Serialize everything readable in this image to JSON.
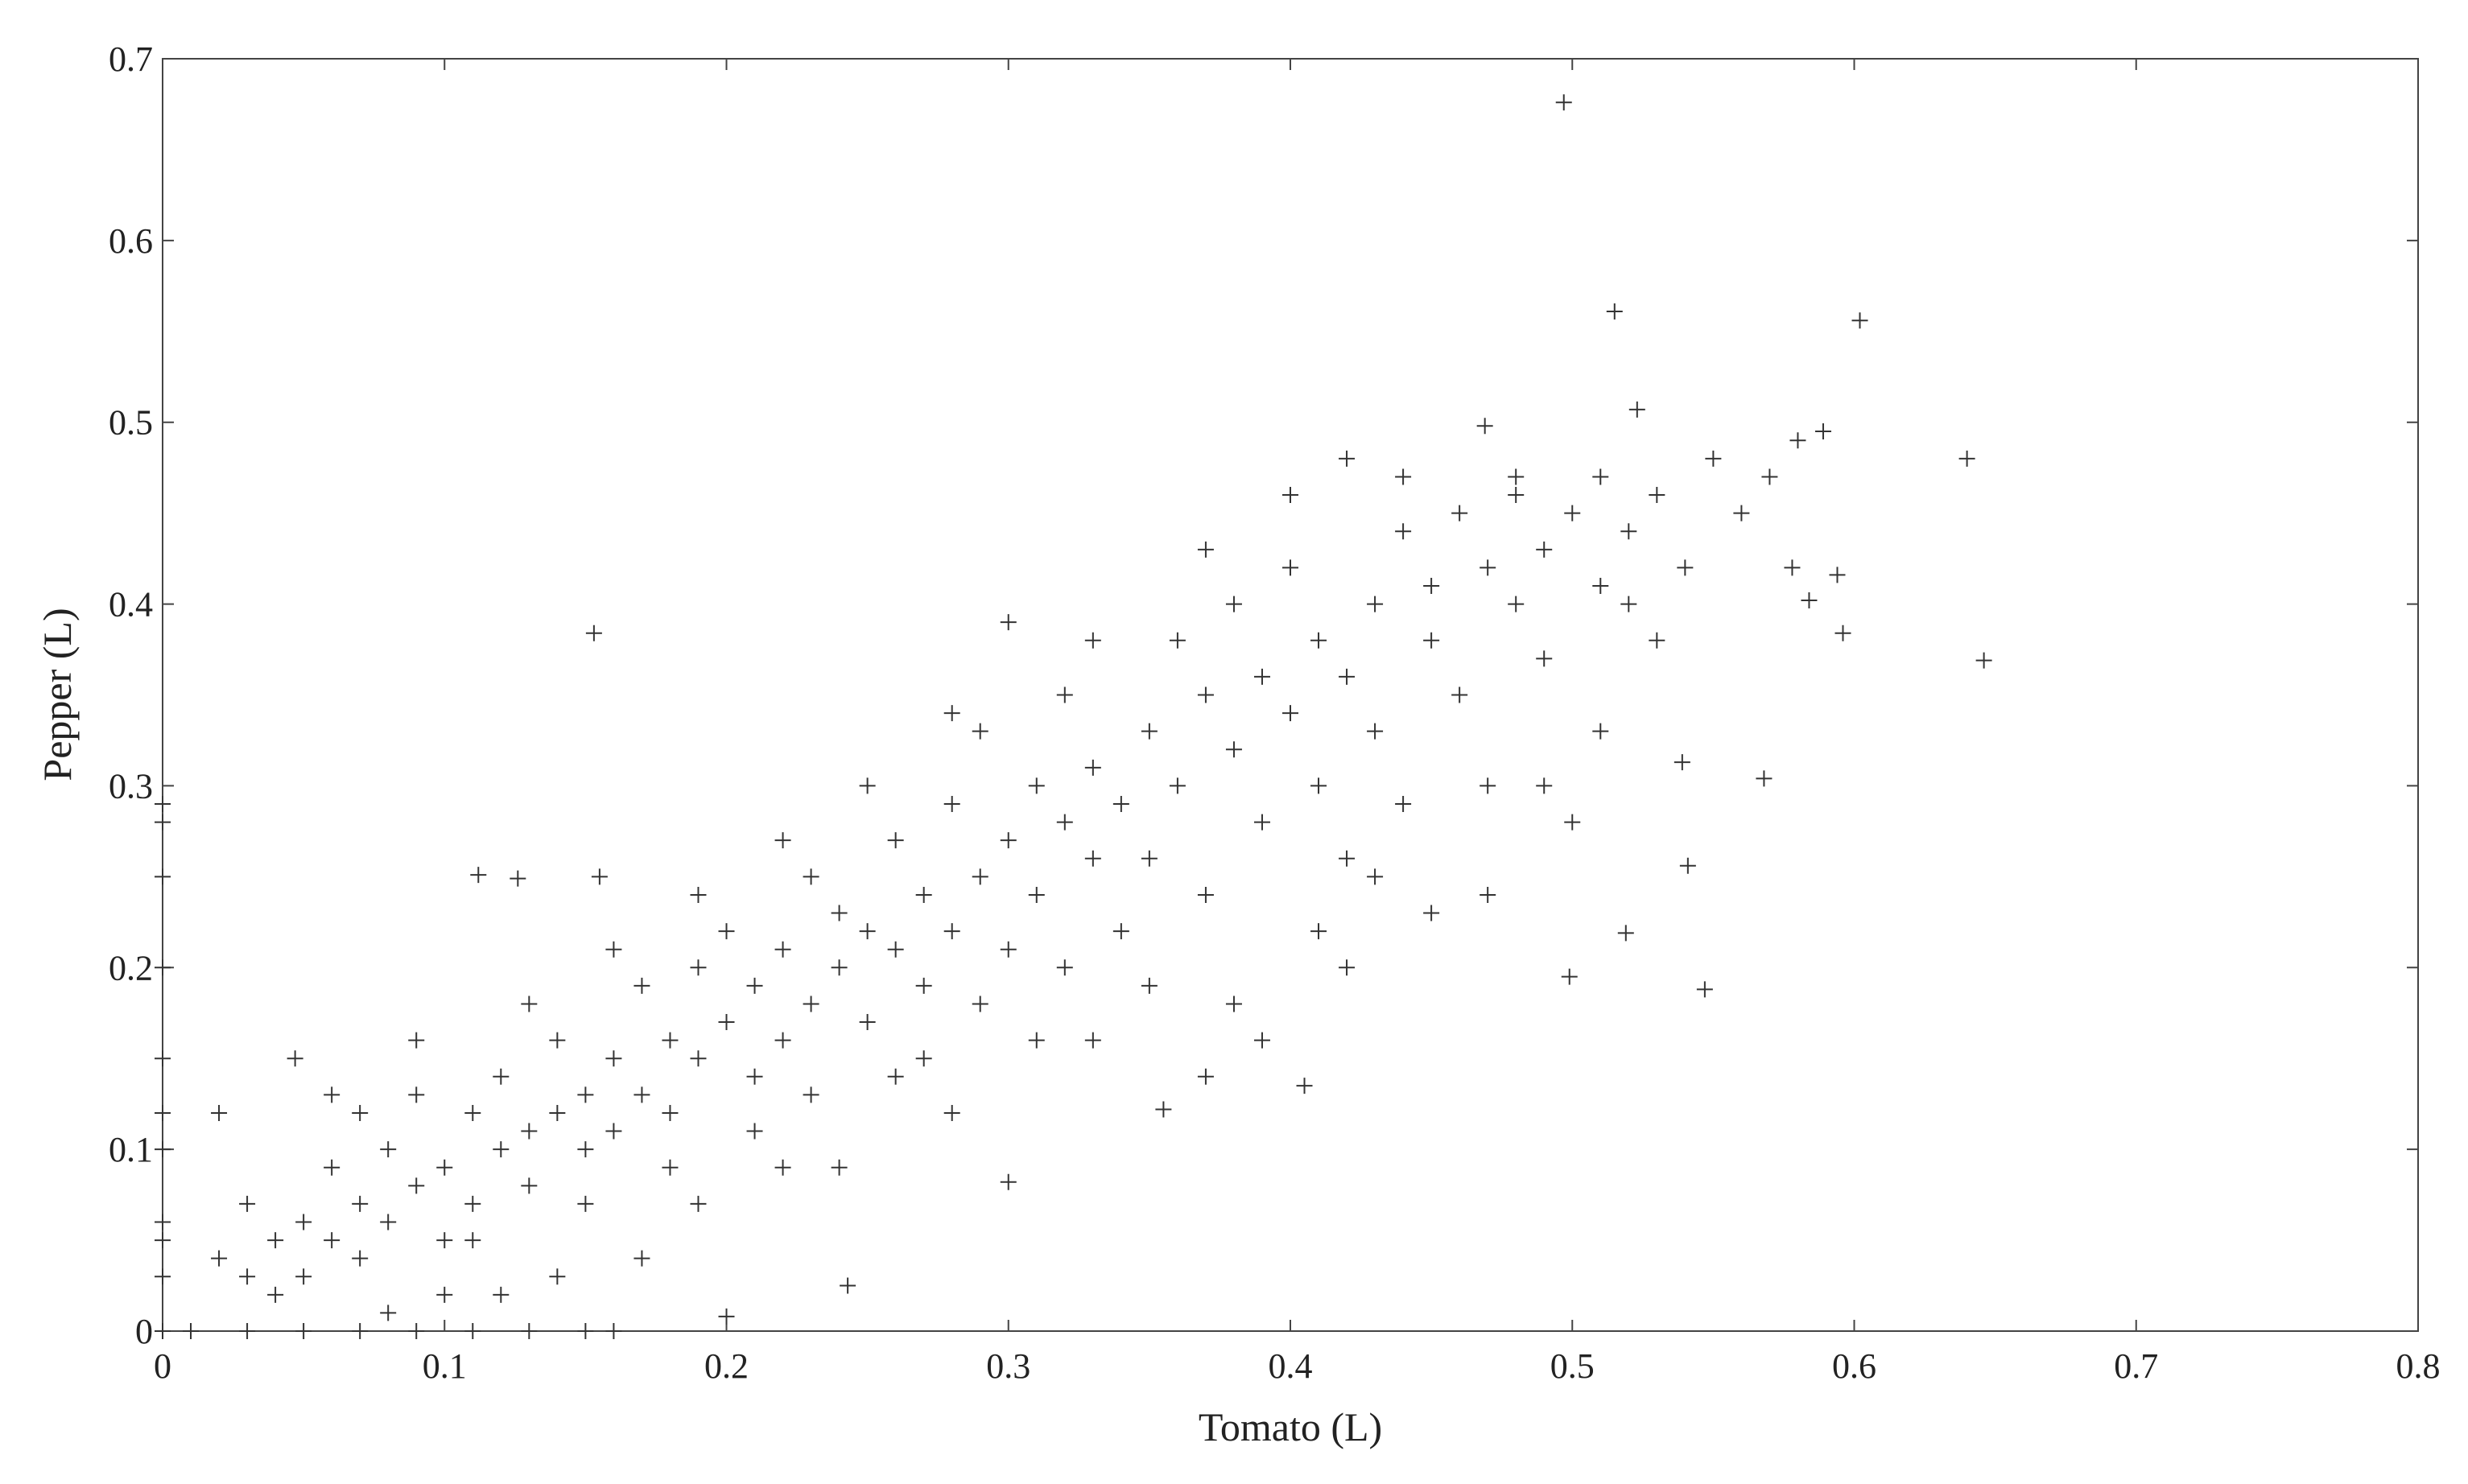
{
  "chart_data": {
    "type": "scatter",
    "x_label": "Tomato (L)",
    "y_label": "Pepper (L)",
    "color": "#333333",
    "xlim": [
      0,
      0.8
    ],
    "ylim": [
      0,
      0.7
    ],
    "xticks": [
      0,
      0.1,
      0.2,
      0.3,
      0.4,
      0.5,
      0.6,
      0.7,
      0.8
    ],
    "yticks": [
      0,
      0.1,
      0.2,
      0.3,
      0.4,
      0.5,
      0.6,
      0.7
    ],
    "x": [
      0.497,
      0.515,
      0.602,
      0.523,
      0.64,
      0.646,
      0.153,
      0.596,
      0.568,
      0.547,
      0.499,
      0.405,
      0.355,
      0.3,
      0.243,
      0.2,
      0.112,
      0.126,
      0.155,
      0.047,
      0.519,
      0.541,
      0.539,
      0.584,
      0.578,
      0.594,
      0.589,
      0.469,
      0,
      0,
      0,
      0,
      0,
      0,
      0,
      0,
      0,
      0,
      0,
      0.01,
      0.03,
      0.05,
      0.07,
      0.09,
      0.11,
      0.13,
      0.15,
      0.16,
      0.02,
      0.03,
      0.04,
      0.05,
      0.06,
      0.06,
      0.07,
      0.07,
      0.08,
      0.08,
      0.09,
      0.09,
      0.1,
      0.1,
      0.11,
      0.11,
      0.12,
      0.12,
      0.13,
      0.13,
      0.14,
      0.14,
      0.15,
      0.15,
      0.16,
      0.16,
      0.17,
      0.17,
      0.18,
      0.18,
      0.19,
      0.19,
      0.2,
      0.2,
      0.21,
      0.21,
      0.22,
      0.22,
      0.23,
      0.23,
      0.24,
      0.24,
      0.25,
      0.25,
      0.26,
      0.26,
      0.27,
      0.27,
      0.28,
      0.28,
      0.29,
      0.29,
      0.3,
      0.3,
      0.31,
      0.31,
      0.32,
      0.32,
      0.33,
      0.33,
      0.34,
      0.34,
      0.35,
      0.35,
      0.36,
      0.36,
      0.37,
      0.37,
      0.38,
      0.38,
      0.39,
      0.39,
      0.4,
      0.4,
      0.41,
      0.41,
      0.42,
      0.42,
      0.43,
      0.43,
      0.44,
      0.44,
      0.45,
      0.45,
      0.46,
      0.46,
      0.47,
      0.47,
      0.48,
      0.48,
      0.49,
      0.49,
      0.5,
      0.5,
      0.51,
      0.51,
      0.52,
      0.52,
      0.53,
      0.54,
      0.55,
      0.56,
      0.57,
      0.58,
      0.45,
      0.47,
      0.42,
      0.39,
      0.37,
      0.33,
      0.31,
      0.28,
      0.26,
      0.24,
      0.22,
      0.19,
      0.17,
      0.14,
      0.12,
      0.1,
      0.08,
      0.05,
      0.03,
      0.02,
      0.06,
      0.09,
      0.13,
      0.16,
      0.19,
      0.22,
      0.25,
      0.28,
      0.3,
      0.33,
      0.37,
      0.4,
      0.42,
      0.44,
      0.48,
      0.53,
      0.51,
      0.49,
      0.43,
      0.41,
      0.38,
      0.35,
      0.32,
      0.29,
      0.27,
      0.23,
      0.21,
      0.18,
      0.15,
      0.11,
      0.07,
      0.04
    ],
    "values": [
      0.676,
      0.561,
      0.556,
      0.507,
      0.48,
      0.369,
      0.384,
      0.384,
      0.304,
      0.188,
      0.195,
      0.135,
      0.122,
      0.082,
      0.025,
      0.008,
      0.251,
      0.249,
      0.25,
      0.15,
      0.219,
      0.256,
      0.313,
      0.402,
      0.42,
      0.416,
      0.495,
      0.498,
      0.29,
      0.28,
      0.25,
      0.2,
      0.15,
      0.12,
      0.1,
      0.06,
      0.05,
      0.03,
      0,
      0,
      0,
      0,
      0,
      0,
      0,
      0,
      0,
      0,
      0.04,
      0.07,
      0.02,
      0.06,
      0.05,
      0.09,
      0.07,
      0.12,
      0.06,
      0.1,
      0.08,
      0.13,
      0.09,
      0.05,
      0.12,
      0.07,
      0.1,
      0.14,
      0.11,
      0.08,
      0.12,
      0.16,
      0.13,
      0.1,
      0.15,
      0.11,
      0.19,
      0.13,
      0.16,
      0.12,
      0.2,
      0.15,
      0.17,
      0.22,
      0.14,
      0.19,
      0.21,
      0.16,
      0.25,
      0.18,
      0.2,
      0.23,
      0.22,
      0.17,
      0.27,
      0.21,
      0.24,
      0.19,
      0.29,
      0.22,
      0.25,
      0.33,
      0.27,
      0.21,
      0.3,
      0.24,
      0.35,
      0.28,
      0.26,
      0.31,
      0.29,
      0.22,
      0.33,
      0.26,
      0.38,
      0.3,
      0.35,
      0.24,
      0.32,
      0.4,
      0.28,
      0.36,
      0.34,
      0.42,
      0.3,
      0.38,
      0.36,
      0.26,
      0.4,
      0.33,
      0.44,
      0.29,
      0.38,
      0.41,
      0.35,
      0.45,
      0.42,
      0.3,
      0.4,
      0.46,
      0.37,
      0.43,
      0.45,
      0.28,
      0.41,
      0.47,
      0.44,
      0.4,
      0.46,
      0.42,
      0.48,
      0.45,
      0.47,
      0.49,
      0.23,
      0.24,
      0.2,
      0.16,
      0.14,
      0.16,
      0.16,
      0.12,
      0.14,
      0.09,
      0.09,
      0.07,
      0.04,
      0.03,
      0.02,
      0.02,
      0.01,
      0.03,
      0.03,
      0.12,
      0.13,
      0.16,
      0.18,
      0.21,
      0.24,
      0.27,
      0.3,
      0.34,
      0.39,
      0.38,
      0.43,
      0.46,
      0.48,
      0.47,
      0.47,
      0.38,
      0.33,
      0.3,
      0.25,
      0.22,
      0.18,
      0.19,
      0.2,
      0.18,
      0.15,
      0.13,
      0.11,
      0.09,
      0.07,
      0.05,
      0.04,
      0.05
    ]
  }
}
